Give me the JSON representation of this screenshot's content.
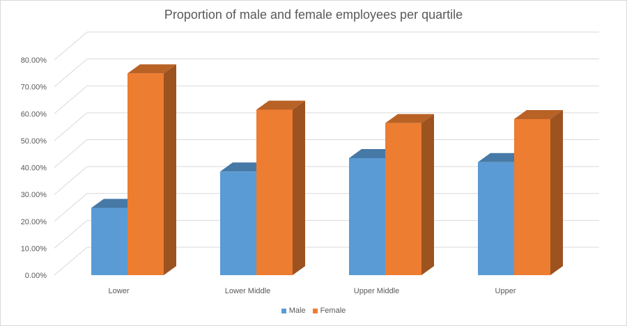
{
  "chart_data": {
    "type": "bar",
    "title": "Proportion of male and female employees per quartile",
    "xlabel": "",
    "ylabel": "",
    "categories": [
      "Lower",
      "Lower Middle",
      "Upper Middle",
      "Upper"
    ],
    "series": [
      {
        "name": "Male",
        "values": [
          25.0,
          38.5,
          43.5,
          42.0
        ],
        "color": "#5b9bd5"
      },
      {
        "name": "Female",
        "values": [
          75.0,
          61.5,
          56.5,
          58.0
        ],
        "color": "#ed7d31"
      }
    ],
    "ylim": [
      0,
      80
    ],
    "ytick_labels": [
      "0.00%",
      "10.00%",
      "20.00%",
      "30.00%",
      "40.00%",
      "50.00%",
      "60.00%",
      "70.00%",
      "80.00%"
    ],
    "grid": true,
    "legend": "bottom"
  }
}
